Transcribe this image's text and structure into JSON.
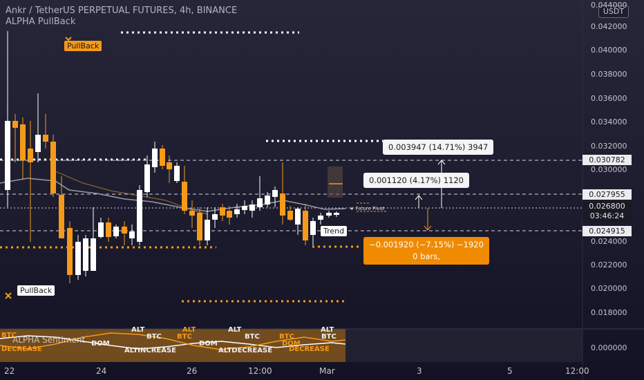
{
  "header": {
    "title": "Ankr / TetherUS PERPETUAL FUTURES, 4h, BINANCE",
    "indicator": "ALPHA PullBack",
    "currency": "USDT"
  },
  "price_axis": {
    "ticks": [
      "0.044000",
      "0.042000",
      "0.040000",
      "0.038000",
      "0.036000",
      "0.034000",
      "0.032000",
      "0.030000",
      "0.028000",
      "0.026000",
      "0.024000",
      "0.022000",
      "0.020000",
      "0.018000"
    ],
    "labels": {
      "level1": "0.030782",
      "level2": "0.027955",
      "last_price": "0.026800",
      "countdown": "03:46:24",
      "level3": "0.024915"
    },
    "indicator_zero": "0.000000"
  },
  "time_axis": [
    "22",
    "24",
    "26",
    "12:00",
    "Mar",
    "3",
    "5",
    "12:00"
  ],
  "markers": {
    "pullback_top": "PullBack",
    "pullback_bottom": "PullBack",
    "trend": "Trend",
    "future_label": "Future Pivot"
  },
  "measurements": {
    "up_large": "0.003947 (14.71%) 3947",
    "up_small": "0.001120 (4.17%) 1120",
    "down_line1": "−0.001920 (−7.15%) −1920",
    "down_line2": "0 bars,"
  },
  "indicator_panel": {
    "title": "ALPHA Sentiment",
    "labels_white": [
      "ALT",
      "BTC",
      "DOM",
      "ALT",
      "BTC",
      "ALT",
      "BTC",
      "DOM",
      "ALT",
      "BTC"
    ],
    "labels_orange": [
      "BTC",
      "DECREASE",
      "ALT",
      "DOM",
      "INCREASE",
      "BTC",
      "ALT",
      "DOM",
      "DECREASE"
    ],
    "row_text": [
      "ALTINCREASE",
      "ALTDECREASE"
    ]
  },
  "colors": {
    "bull": "#ffffff",
    "bear": "#f59a1a",
    "accent": "#f08a00",
    "background": "#1e1e30"
  }
}
